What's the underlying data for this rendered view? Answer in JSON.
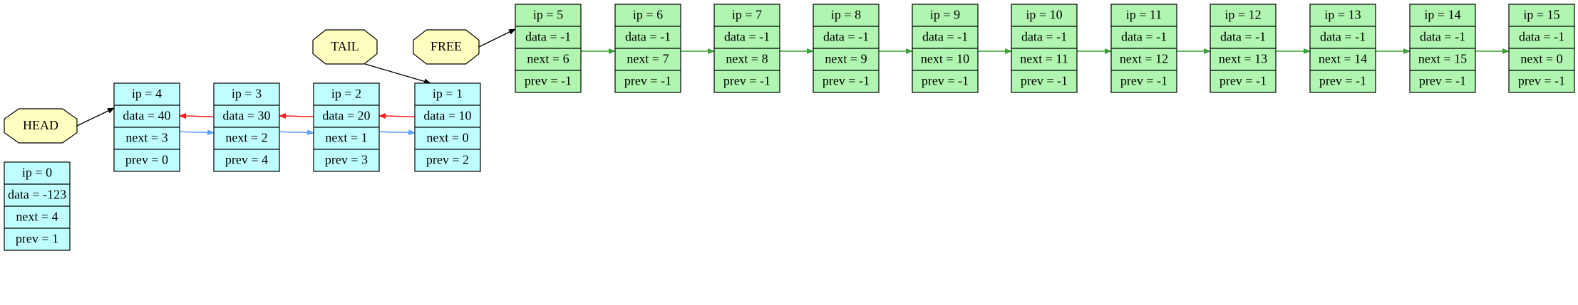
{
  "labels": {
    "head": "HEAD",
    "tail": "TAIL",
    "free": "FREE"
  },
  "colors": {
    "used_node_fill": "#c0ffff",
    "free_node_fill": "#b0f5b0",
    "label_fill": "#ffffc0",
    "next_edge": "#5aa0ff",
    "prev_edge": "#ff1a1a",
    "free_edge": "#3aa03a",
    "pointer_edge": "#000000"
  },
  "nodes": [
    {
      "id": 0,
      "kind": "sentinel",
      "rows": [
        "ip = 0",
        "data = -123",
        "next = 4",
        "prev = 1"
      ]
    },
    {
      "id": 1,
      "kind": "used",
      "rows": [
        "ip = 1",
        "data = 10",
        "next = 0",
        "prev = 2"
      ]
    },
    {
      "id": 2,
      "kind": "used",
      "rows": [
        "ip = 2",
        "data = 20",
        "next = 1",
        "prev = 3"
      ]
    },
    {
      "id": 3,
      "kind": "used",
      "rows": [
        "ip = 3",
        "data = 30",
        "next = 2",
        "prev = 4"
      ]
    },
    {
      "id": 4,
      "kind": "used",
      "rows": [
        "ip = 4",
        "data = 40",
        "next = 3",
        "prev = 0"
      ]
    },
    {
      "id": 5,
      "kind": "free",
      "rows": [
        "ip = 5",
        "data = -1",
        "next = 6",
        "prev = -1"
      ]
    },
    {
      "id": 6,
      "kind": "free",
      "rows": [
        "ip = 6",
        "data = -1",
        "next = 7",
        "prev = -1"
      ]
    },
    {
      "id": 7,
      "kind": "free",
      "rows": [
        "ip = 7",
        "data = -1",
        "next = 8",
        "prev = -1"
      ]
    },
    {
      "id": 8,
      "kind": "free",
      "rows": [
        "ip = 8",
        "data = -1",
        "next = 9",
        "prev = -1"
      ]
    },
    {
      "id": 9,
      "kind": "free",
      "rows": [
        "ip = 9",
        "data = -1",
        "next = 10",
        "prev = -1"
      ]
    },
    {
      "id": 10,
      "kind": "free",
      "rows": [
        "ip = 10",
        "data = -1",
        "next = 11",
        "prev = -1"
      ]
    },
    {
      "id": 11,
      "kind": "free",
      "rows": [
        "ip = 11",
        "data = -1",
        "next = 12",
        "prev = -1"
      ]
    },
    {
      "id": 12,
      "kind": "free",
      "rows": [
        "ip = 12",
        "data = -1",
        "next = 13",
        "prev = -1"
      ]
    },
    {
      "id": 13,
      "kind": "free",
      "rows": [
        "ip = 13",
        "data = -1",
        "next = 14",
        "prev = -1"
      ]
    },
    {
      "id": 14,
      "kind": "free",
      "rows": [
        "ip = 14",
        "data = -1",
        "next = 15",
        "prev = -1"
      ]
    },
    {
      "id": 15,
      "kind": "free",
      "rows": [
        "ip = 15",
        "data = -1",
        "next = 0",
        "prev = -1"
      ]
    }
  ],
  "edges": [
    {
      "from": "HEAD",
      "to": 4,
      "kind": "pointer"
    },
    {
      "from": "TAIL",
      "to": 1,
      "kind": "pointer"
    },
    {
      "from": "FREE",
      "to": 5,
      "kind": "pointer"
    },
    {
      "from": 4,
      "to": 3,
      "kind": "next"
    },
    {
      "from": 3,
      "to": 2,
      "kind": "next"
    },
    {
      "from": 2,
      "to": 1,
      "kind": "next"
    },
    {
      "from": 1,
      "to": 2,
      "kind": "prev"
    },
    {
      "from": 2,
      "to": 3,
      "kind": "prev"
    },
    {
      "from": 3,
      "to": 4,
      "kind": "prev"
    },
    {
      "from": 5,
      "to": 6,
      "kind": "free"
    },
    {
      "from": 6,
      "to": 7,
      "kind": "free"
    },
    {
      "from": 7,
      "to": 8,
      "kind": "free"
    },
    {
      "from": 8,
      "to": 9,
      "kind": "free"
    },
    {
      "from": 9,
      "to": 10,
      "kind": "free"
    },
    {
      "from": 10,
      "to": 11,
      "kind": "free"
    },
    {
      "from": 11,
      "to": 12,
      "kind": "free"
    },
    {
      "from": 12,
      "to": 13,
      "kind": "free"
    },
    {
      "from": 13,
      "to": 14,
      "kind": "free"
    },
    {
      "from": 14,
      "to": 15,
      "kind": "free"
    }
  ]
}
